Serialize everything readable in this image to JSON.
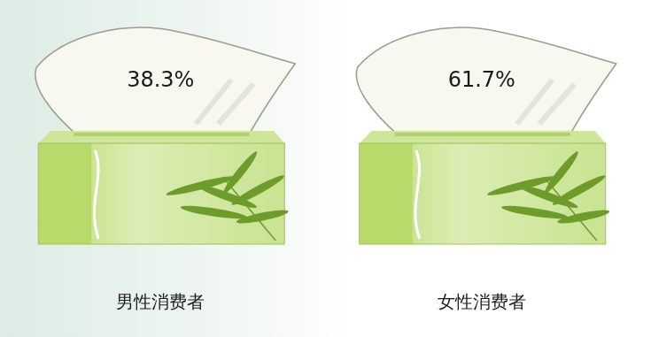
{
  "chart_data": {
    "type": "pictograph",
    "categories": [
      "男性消费者",
      "女性消费者"
    ],
    "values": [
      38.3,
      61.7
    ],
    "value_labels": [
      "38.3%",
      "61.7%"
    ],
    "color": "#b7da6b",
    "data_labels": true,
    "tick_labels": "x",
    "grid": false
  }
}
